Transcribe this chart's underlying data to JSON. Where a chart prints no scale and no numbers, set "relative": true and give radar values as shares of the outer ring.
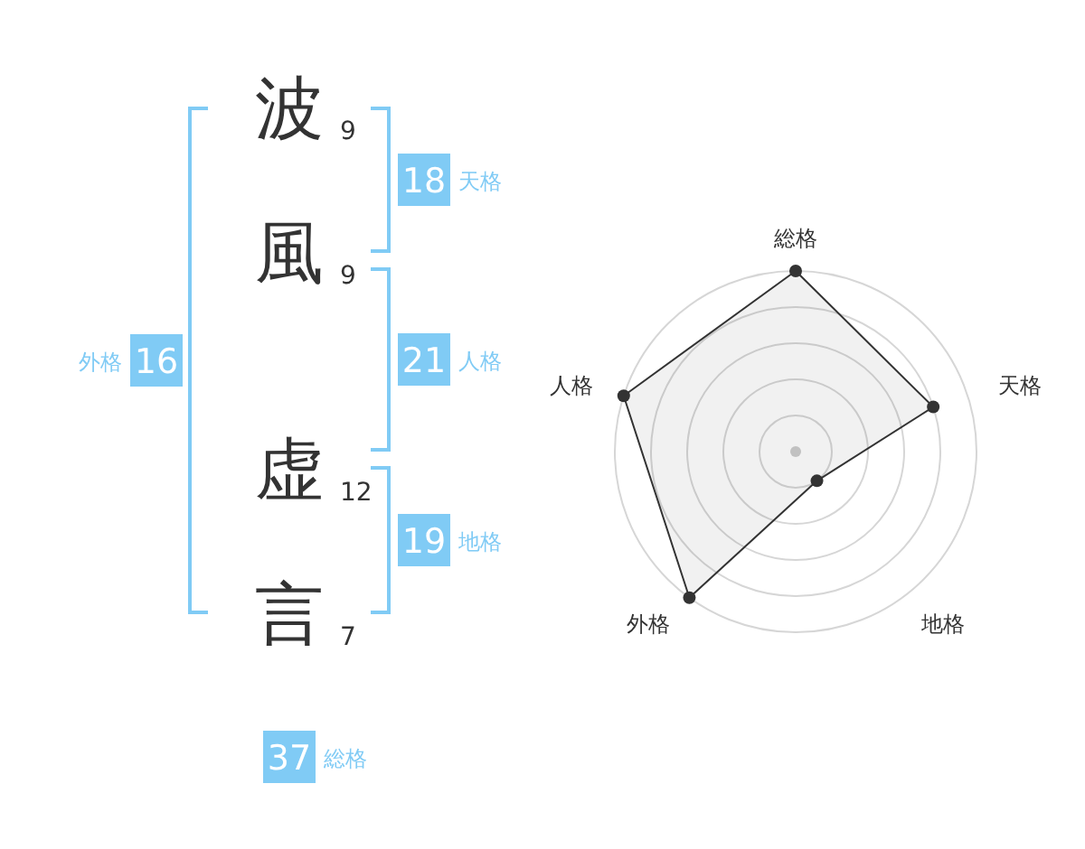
{
  "chart_data": [
    {
      "type": "other",
      "categories": [
        "波",
        "風",
        "虚",
        "言"
      ],
      "values": [
        9,
        9,
        12,
        7
      ],
      "data_labels": true
    },
    {
      "type": "other",
      "categories": [
        "天格",
        "人格",
        "地格",
        "外格",
        "総格"
      ],
      "values": [
        18,
        21,
        19,
        16,
        37
      ],
      "color": "#80cbf5",
      "data_labels": true
    },
    {
      "type": "radar",
      "relative": true,
      "categories": [
        "総格",
        "天格",
        "地格",
        "外格",
        "人格"
      ],
      "series": [
        {
          "color": "#333333",
          "values": [
            1,
            0.8,
            0.2,
            1,
            1
          ]
        }
      ],
      "grid": true,
      "marker": "circle"
    }
  ]
}
